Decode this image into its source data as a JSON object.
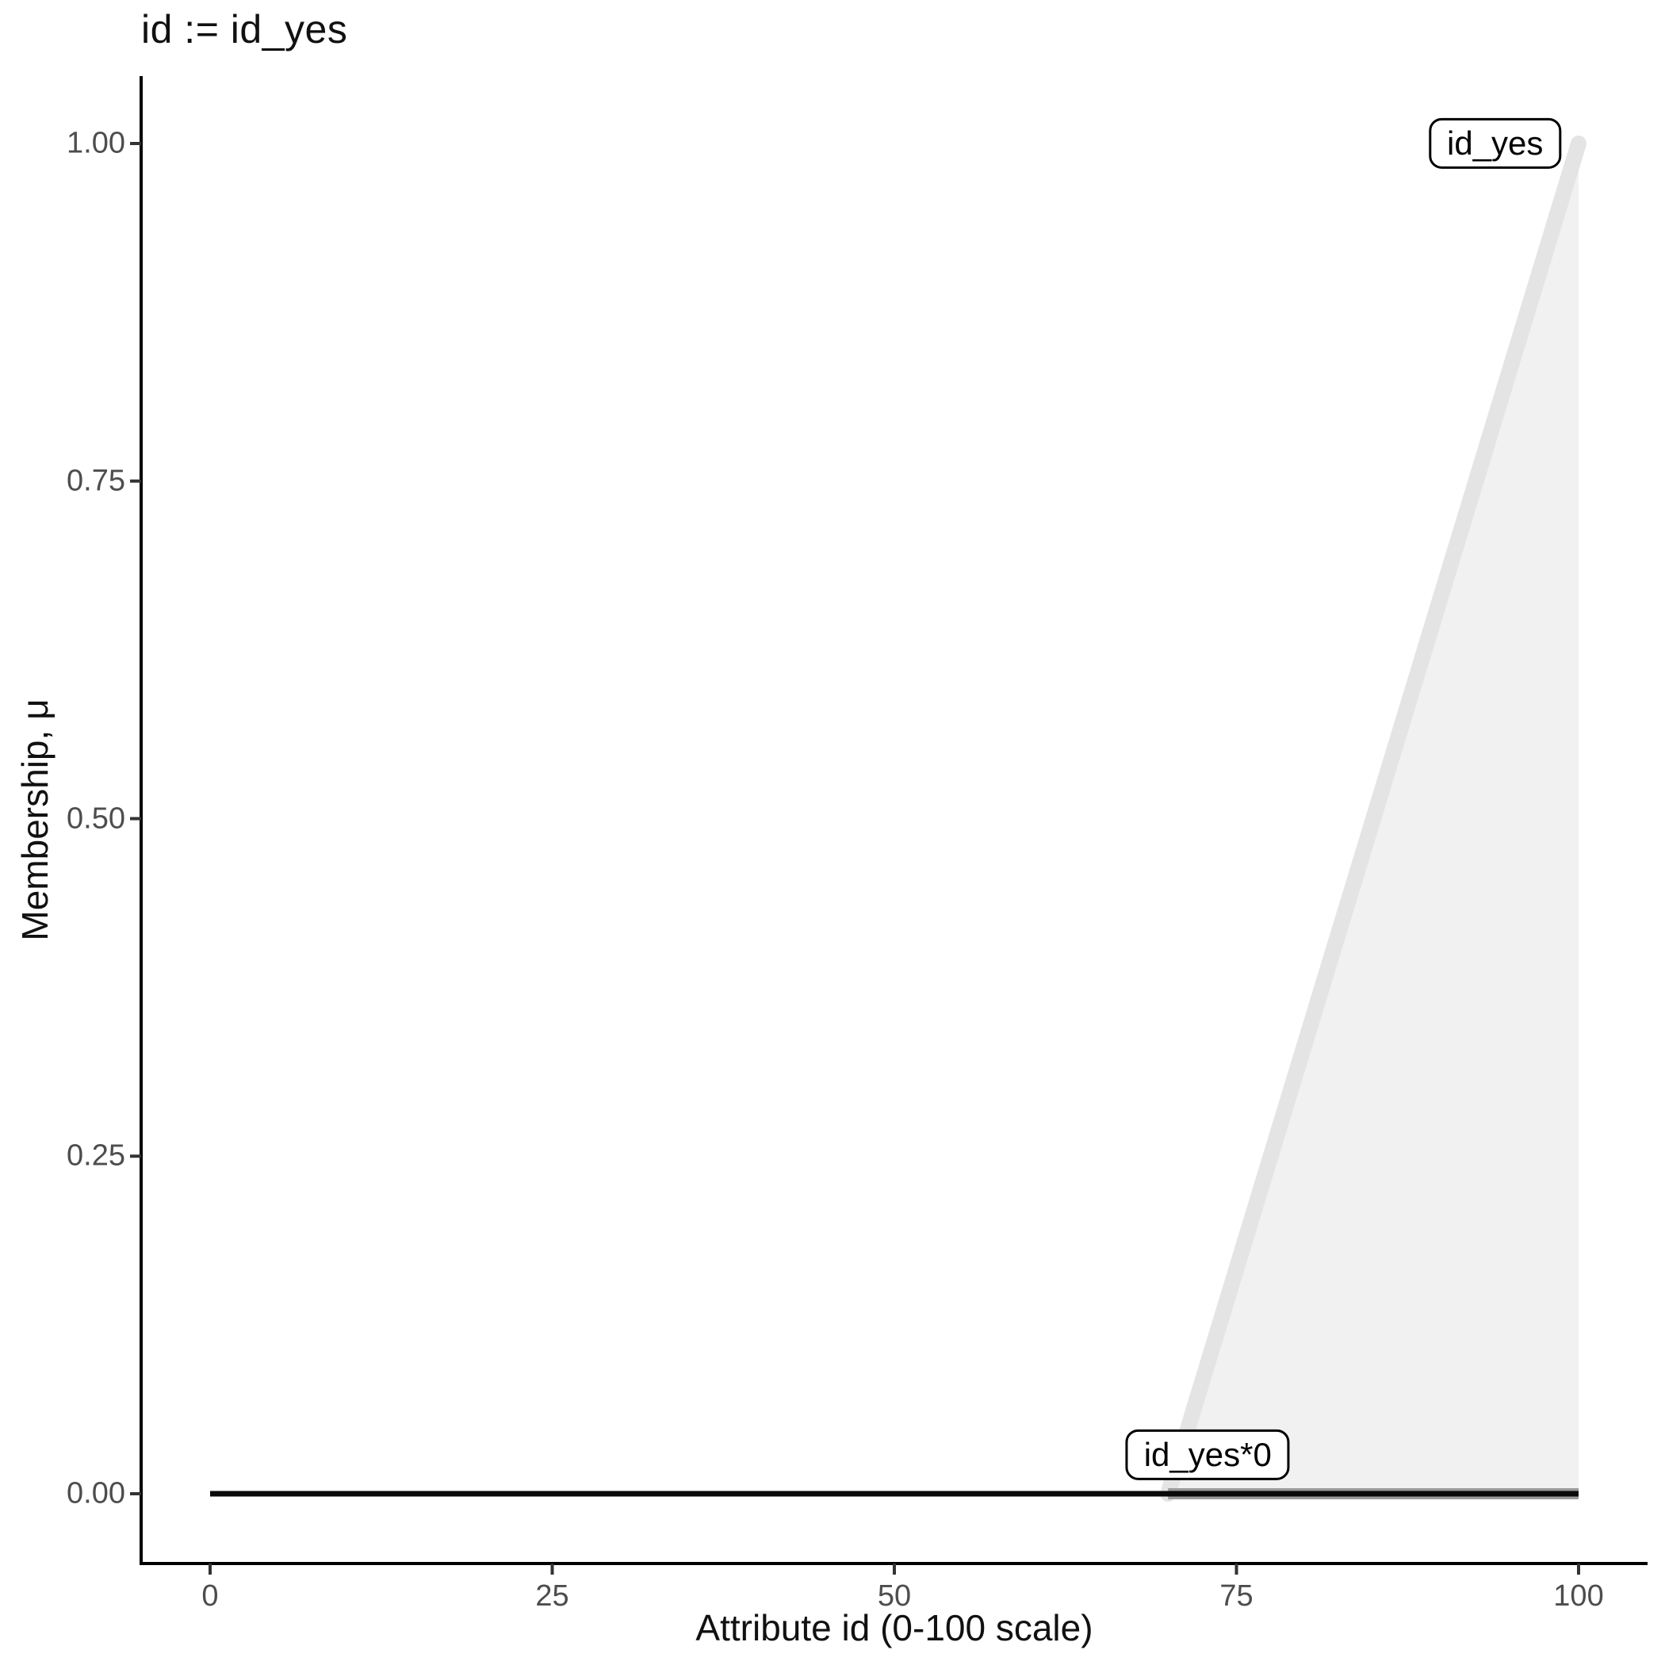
{
  "title": "id := id_yes",
  "chart_data": {
    "type": "area",
    "title": "id := id_yes",
    "xlabel": "Attribute id (0-100 scale)",
    "ylabel": "Membership, μ",
    "xlim": [
      0,
      100
    ],
    "ylim": [
      0,
      1
    ],
    "grid": "off",
    "x_ticks": [
      {
        "v": 0,
        "label": "0"
      },
      {
        "v": 25,
        "label": "25"
      },
      {
        "v": 50,
        "label": "50"
      },
      {
        "v": 75,
        "label": "75"
      },
      {
        "v": 100,
        "label": "100"
      }
    ],
    "y_ticks": [
      {
        "v": 0.0,
        "label": "0.00"
      },
      {
        "v": 0.25,
        "label": "0.25"
      },
      {
        "v": 0.5,
        "label": "0.50"
      },
      {
        "v": 0.75,
        "label": "0.75"
      },
      {
        "v": 1.0,
        "label": "1.00"
      }
    ],
    "series": [
      {
        "name": "id_yes",
        "type": "area",
        "points": [
          [
            70,
            0
          ],
          [
            100,
            1
          ],
          [
            100,
            0
          ]
        ],
        "fill": "#f1f1f1",
        "edge": [
          [
            70,
            0
          ],
          [
            100,
            1
          ]
        ],
        "edge_color": "#e4e4e4",
        "edge_width": 20
      },
      {
        "name": "id_yes*0",
        "type": "line",
        "points": [
          [
            70,
            0
          ],
          [
            100,
            0
          ]
        ],
        "color": "#9b9b9b",
        "width": 14
      },
      {
        "name": "zero-baseline",
        "type": "line",
        "points": [
          [
            0,
            0
          ],
          [
            100,
            0
          ]
        ],
        "color": "#0a0a0a",
        "width": 7
      }
    ],
    "annotations": [
      {
        "text": "id_yes",
        "x": 93.9,
        "y": 1.0
      },
      {
        "text": "id_yes*0",
        "x": 72.9,
        "y": 0.029
      }
    ]
  },
  "colors": {
    "axis_line": "#000000",
    "tick_mark": "#333333",
    "tick_label": "#4d4d4d",
    "title_text": "#111111",
    "fill_light": "#f1f1f1",
    "edge_light": "#e4e4e4",
    "line_gray": "#9b9b9b",
    "line_black": "#0a0a0a"
  }
}
